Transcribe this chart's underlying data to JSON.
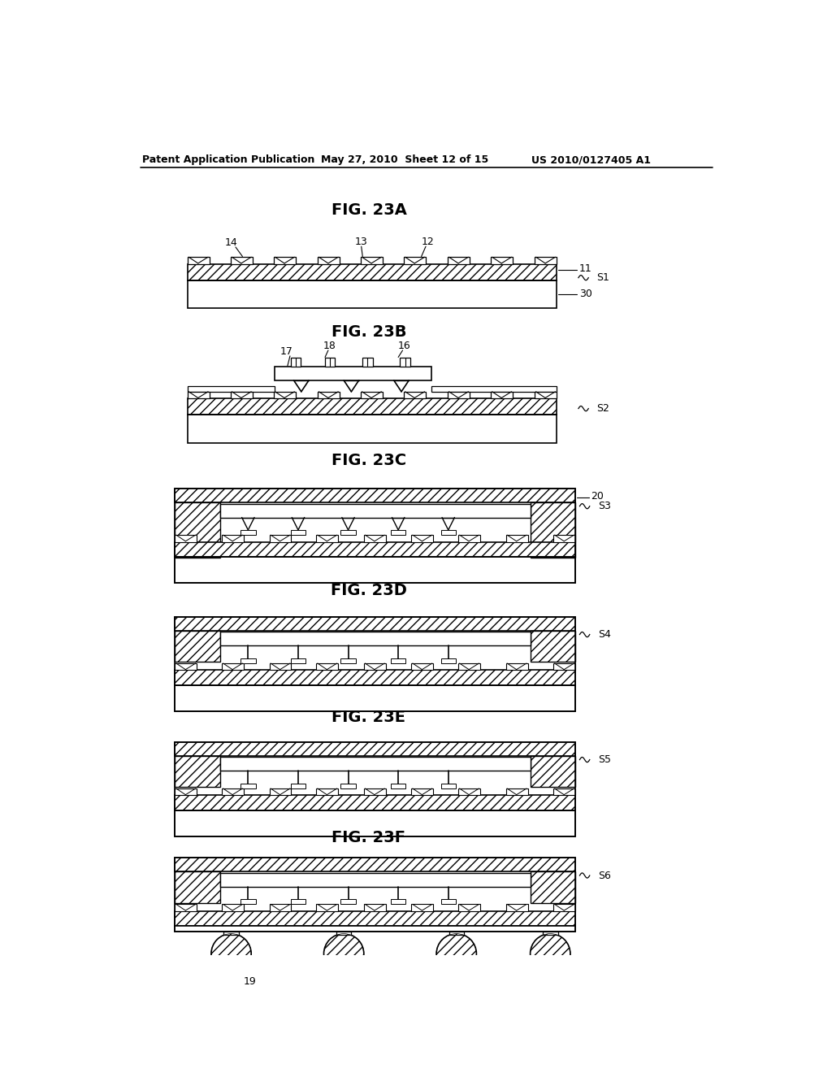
{
  "bg_color": "#ffffff",
  "header_left": "Patent Application Publication",
  "header_mid": "May 27, 2010  Sheet 12 of 15",
  "header_right": "US 2010/0127405 A1"
}
